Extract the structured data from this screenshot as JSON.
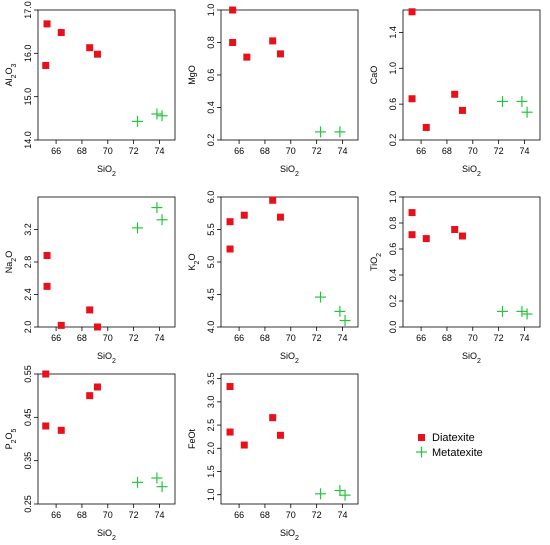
{
  "colors": {
    "diatexite": "#e8101a",
    "metatexite": "#23c63a"
  },
  "legend": {
    "position": "bottom-right",
    "items": [
      {
        "label": "Diatexite",
        "marker": "square",
        "color": "#e8101a"
      },
      {
        "label": "Metatexite",
        "marker": "plus",
        "color": "#23c63a"
      }
    ]
  },
  "chart_data": [
    {
      "type": "scatter",
      "xlabel": "SiO2",
      "ylabel": "Al2O3",
      "xlim": [
        64.6,
        75.2
      ],
      "ylim": [
        14.0,
        17.0
      ],
      "xticks": [
        "66",
        "68",
        "70",
        "72",
        "74"
      ],
      "yticks": [
        "14.0",
        "15.0",
        "16.0",
        "17.0"
      ],
      "series": [
        {
          "name": "Diatexite",
          "x": [
            65.3,
            65.2,
            66.4,
            68.6,
            69.2
          ],
          "y": [
            16.68,
            15.72,
            16.48,
            16.13,
            15.98
          ]
        },
        {
          "name": "Metatexite",
          "x": [
            72.3,
            73.8,
            74.2
          ],
          "y": [
            14.43,
            14.6,
            14.56
          ]
        }
      ]
    },
    {
      "type": "scatter",
      "xlabel": "SiO2",
      "ylabel": "MgO",
      "xlim": [
        64.6,
        75.2
      ],
      "ylim": [
        0.2,
        1.0
      ],
      "xticks": [
        "66",
        "68",
        "70",
        "72",
        "74"
      ],
      "yticks": [
        "0.2",
        "0.4",
        "0.6",
        "0.8",
        "1.0"
      ],
      "series": [
        {
          "name": "Diatexite",
          "x": [
            65.5,
            65.5,
            66.6,
            68.6,
            69.2
          ],
          "y": [
            1.0,
            0.8,
            0.71,
            0.81,
            0.73
          ]
        },
        {
          "name": "Metatexite",
          "x": [
            72.3,
            73.8
          ],
          "y": [
            0.25,
            0.25
          ]
        }
      ]
    },
    {
      "type": "scatter",
      "xlabel": "SiO2",
      "ylabel": "CaO",
      "xlim": [
        64.6,
        75.2
      ],
      "ylim": [
        0.2,
        1.65
      ],
      "xticks": [
        "66",
        "68",
        "70",
        "72",
        "74"
      ],
      "yticks": [
        "0.2",
        "0.6",
        "1.0",
        "1.4"
      ],
      "series": [
        {
          "name": "Diatexite",
          "x": [
            65.3,
            65.3,
            66.4,
            68.6,
            69.2
          ],
          "y": [
            1.63,
            0.66,
            0.34,
            0.71,
            0.53
          ]
        },
        {
          "name": "Metatexite",
          "x": [
            72.3,
            73.8,
            74.2
          ],
          "y": [
            0.63,
            0.63,
            0.51
          ]
        }
      ]
    },
    {
      "type": "scatter",
      "xlabel": "SiO2",
      "ylabel": "Na2O",
      "xlim": [
        64.6,
        75.2
      ],
      "ylim": [
        2.0,
        3.6
      ],
      "xticks": [
        "66",
        "68",
        "70",
        "72",
        "74"
      ],
      "yticks": [
        "2.0",
        "2.4",
        "2.8",
        "3.2"
      ],
      "series": [
        {
          "name": "Diatexite",
          "x": [
            65.3,
            65.3,
            66.4,
            68.6,
            69.2
          ],
          "y": [
            2.88,
            2.5,
            2.02,
            2.21,
            2.0
          ]
        },
        {
          "name": "Metatexite",
          "x": [
            72.3,
            73.8,
            74.2
          ],
          "y": [
            3.22,
            3.47,
            3.32
          ]
        }
      ]
    },
    {
      "type": "scatter",
      "xlabel": "SiO2",
      "ylabel": "K2O",
      "xlim": [
        64.6,
        75.2
      ],
      "ylim": [
        4.0,
        6.0
      ],
      "xticks": [
        "66",
        "68",
        "70",
        "72",
        "74"
      ],
      "yticks": [
        "4.0",
        "4.5",
        "5.0",
        "5.5",
        "6.0"
      ],
      "series": [
        {
          "name": "Diatexite",
          "x": [
            65.3,
            65.3,
            66.4,
            68.6,
            69.2
          ],
          "y": [
            5.62,
            5.2,
            5.72,
            5.95,
            5.69
          ]
        },
        {
          "name": "Metatexite",
          "x": [
            72.3,
            73.8,
            74.2
          ],
          "y": [
            4.46,
            4.24,
            4.1
          ]
        }
      ]
    },
    {
      "type": "scatter",
      "xlabel": "SiO2",
      "ylabel": "TiO2",
      "xlim": [
        64.6,
        75.2
      ],
      "ylim": [
        0.0,
        1.0
      ],
      "xticks": [
        "66",
        "68",
        "70",
        "72",
        "74"
      ],
      "yticks": [
        "0.0",
        "0.2",
        "0.4",
        "0.6",
        "0.8",
        "1.0"
      ],
      "series": [
        {
          "name": "Diatexite",
          "x": [
            65.3,
            65.3,
            66.4,
            68.6,
            69.2
          ],
          "y": [
            0.88,
            0.71,
            0.68,
            0.75,
            0.7
          ]
        },
        {
          "name": "Metatexite",
          "x": [
            72.3,
            73.8,
            74.2
          ],
          "y": [
            0.12,
            0.12,
            0.1
          ]
        }
      ]
    },
    {
      "type": "scatter",
      "xlabel": "SiO2",
      "ylabel": "P2O5",
      "xlim": [
        64.6,
        75.2
      ],
      "ylim": [
        0.25,
        0.55
      ],
      "xticks": [
        "66",
        "68",
        "70",
        "72",
        "74"
      ],
      "yticks": [
        "0.25",
        "0.35",
        "0.45",
        "0.55"
      ],
      "series": [
        {
          "name": "Diatexite",
          "x": [
            65.2,
            65.2,
            66.4,
            68.6,
            69.2
          ],
          "y": [
            0.55,
            0.43,
            0.42,
            0.5,
            0.52
          ]
        },
        {
          "name": "Metatexite",
          "x": [
            72.3,
            73.8,
            74.2
          ],
          "y": [
            0.3,
            0.31,
            0.29
          ]
        }
      ]
    },
    {
      "type": "scatter",
      "xlabel": "SiO2",
      "ylabel": "FeOt",
      "xlim": [
        64.6,
        75.2
      ],
      "ylim": [
        0.8,
        3.6
      ],
      "xticks": [
        "66",
        "68",
        "70",
        "72",
        "74"
      ],
      "yticks": [
        "1.0",
        "1.5",
        "2.0",
        "2.5",
        "3.0",
        "3.5"
      ],
      "series": [
        {
          "name": "Diatexite",
          "x": [
            65.3,
            65.3,
            66.4,
            68.6,
            69.2
          ],
          "y": [
            3.33,
            2.35,
            2.07,
            2.66,
            2.28
          ]
        },
        {
          "name": "Metatexite",
          "x": [
            72.3,
            73.8,
            74.2
          ],
          "y": [
            1.02,
            1.09,
            0.99
          ]
        }
      ]
    }
  ]
}
